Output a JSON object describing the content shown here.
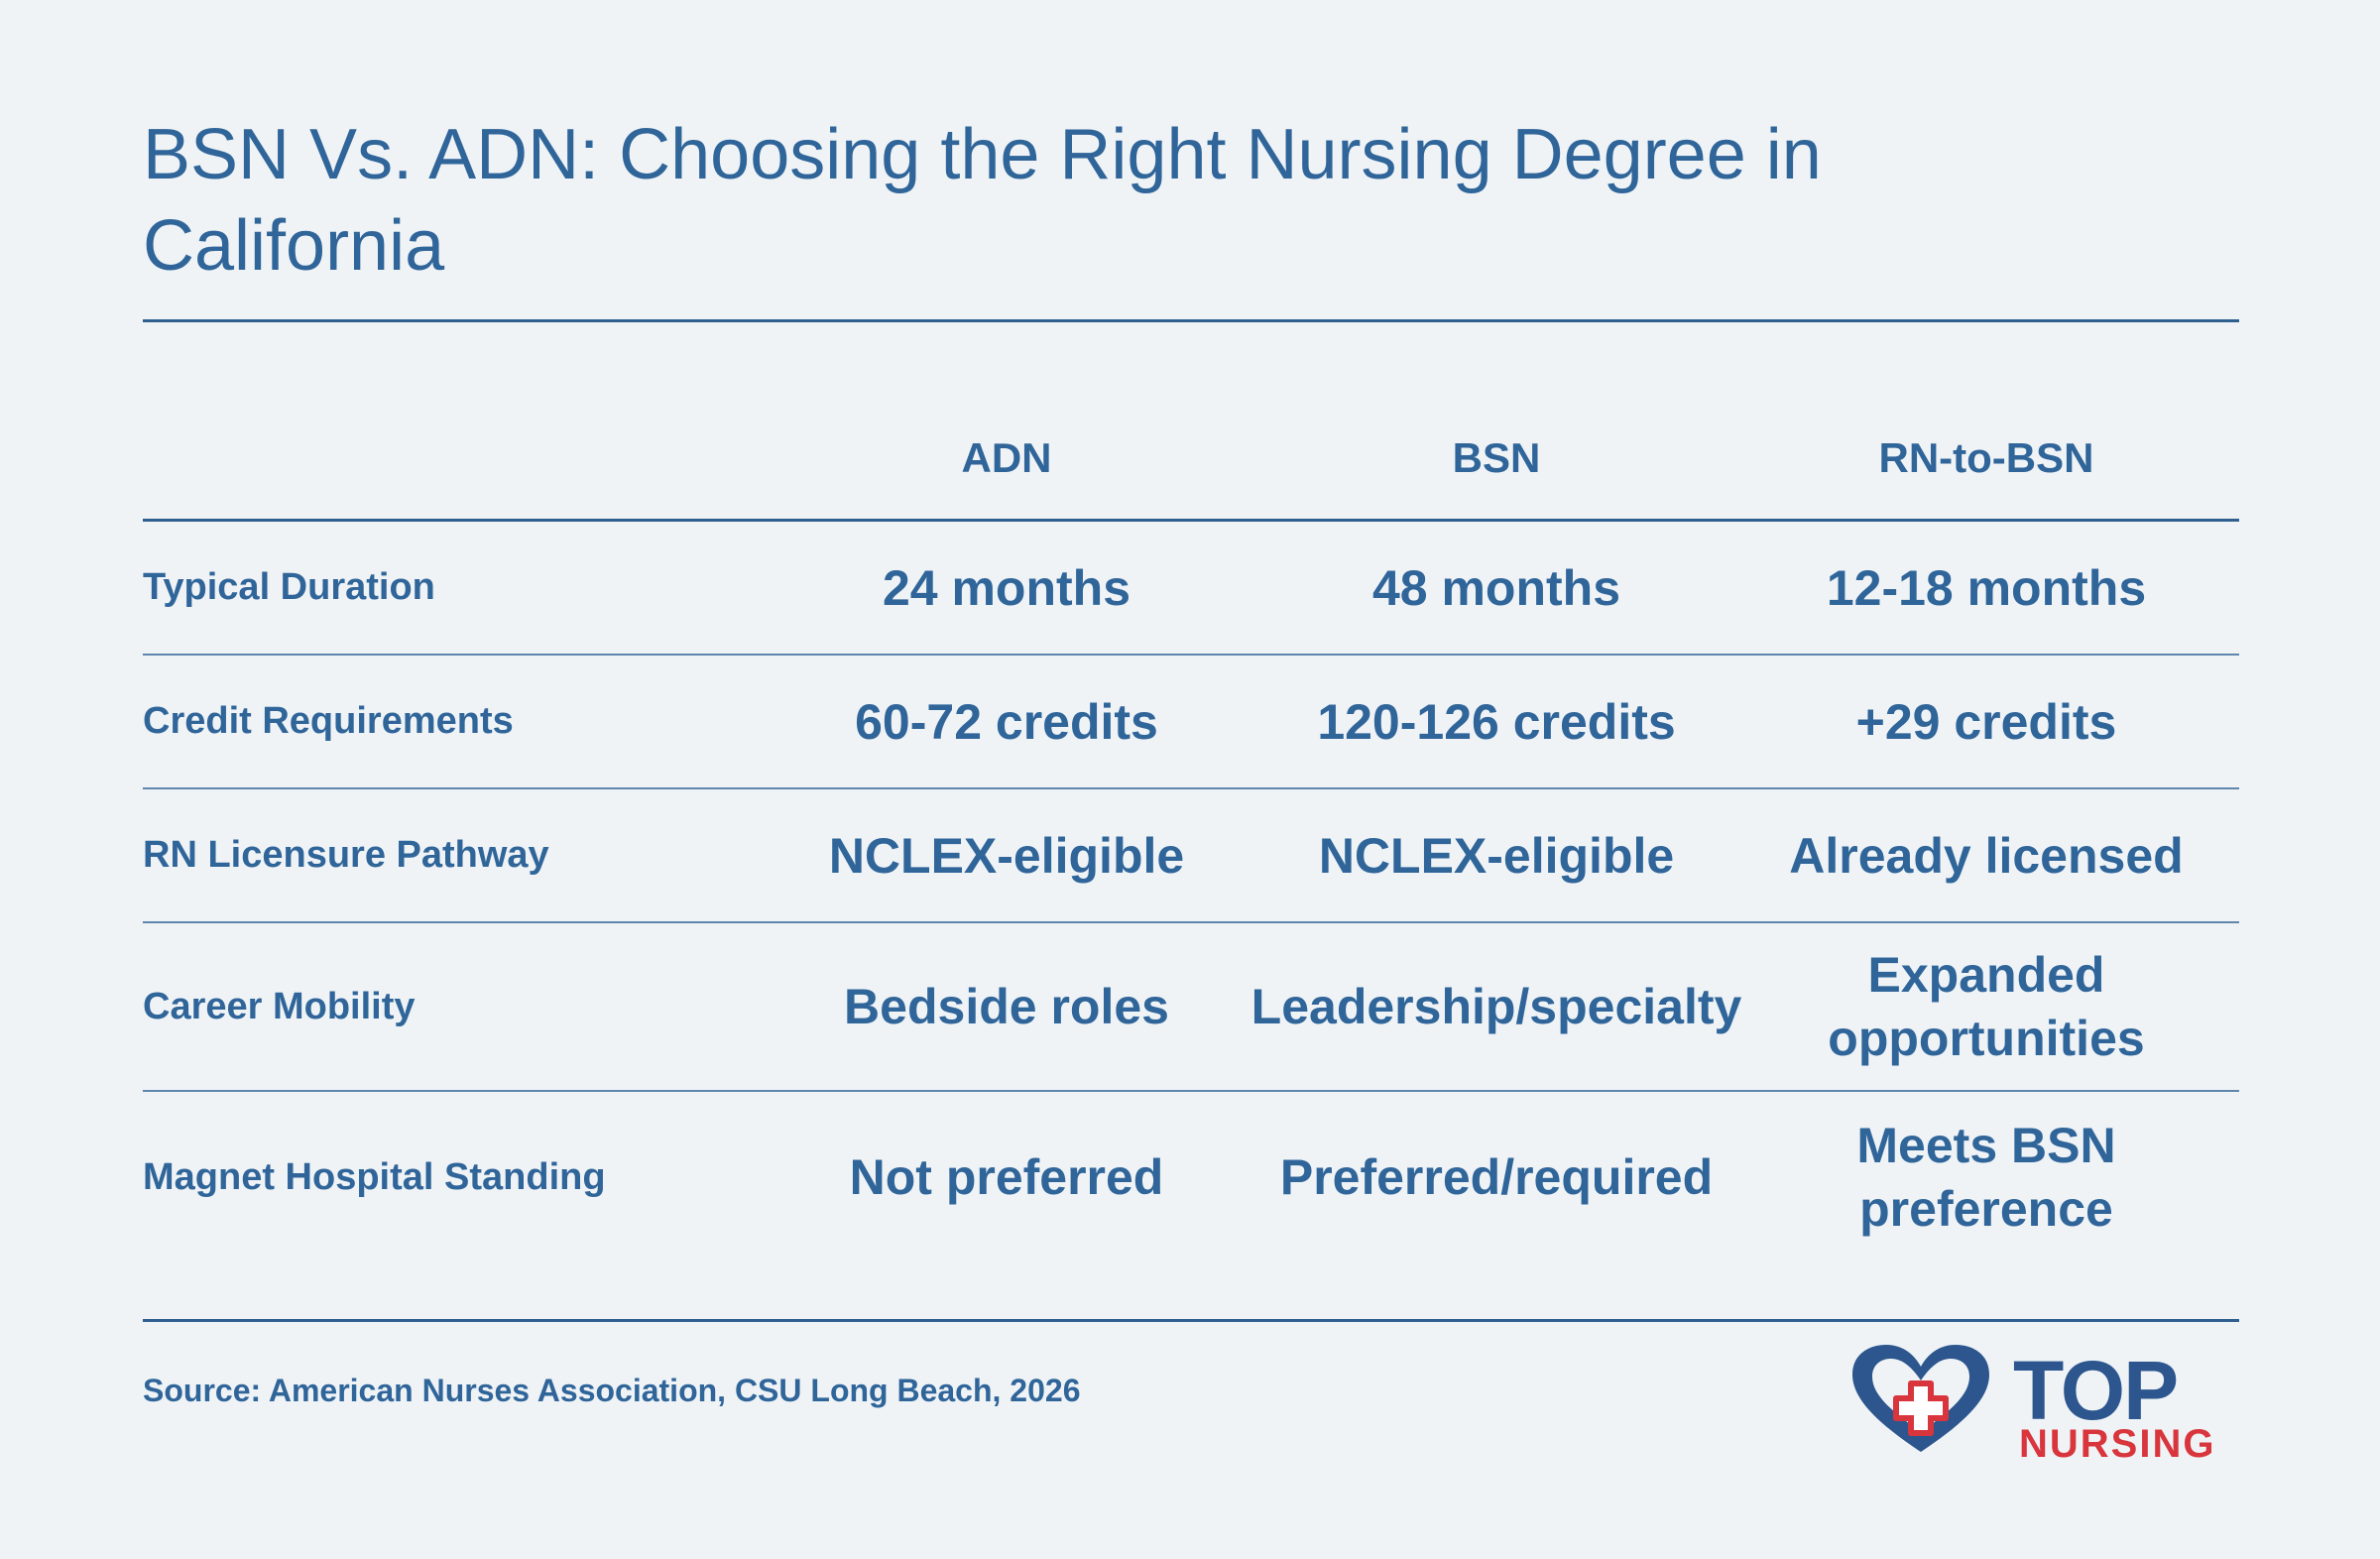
{
  "title": "BSN Vs. ADN: Choosing the Right Nursing Degree in California",
  "columns": [
    "ADN",
    "BSN",
    "RN-to-BSN"
  ],
  "rows": [
    {
      "label": "Typical Duration",
      "values": [
        "24 months",
        "48 months",
        "12-18 months"
      ]
    },
    {
      "label": "Credit Requirements",
      "values": [
        "60-72 credits",
        "120-126 credits",
        "+29 credits"
      ]
    },
    {
      "label": "RN Licensure Pathway",
      "values": [
        "NCLEX-eligible",
        "NCLEX-eligible",
        "Already licensed"
      ]
    },
    {
      "label": "Career Mobility",
      "values": [
        "Bedside roles",
        "Leadership/specialty",
        "Expanded opportunities"
      ]
    },
    {
      "label": "Magnet Hospital Standing",
      "values": [
        "Not preferred",
        "Preferred/required",
        "Meets BSN preference"
      ]
    }
  ],
  "source": "Source: American Nurses Association, CSU Long Beach, 2026",
  "logo": {
    "line1": "TOP",
    "line2": "NURSING",
    "icon": "heart-cross-icon"
  },
  "colors": {
    "background": "#eff3f6",
    "text": "#30659a",
    "logo_blue": "#2c568d",
    "logo_red": "#d8353c"
  }
}
